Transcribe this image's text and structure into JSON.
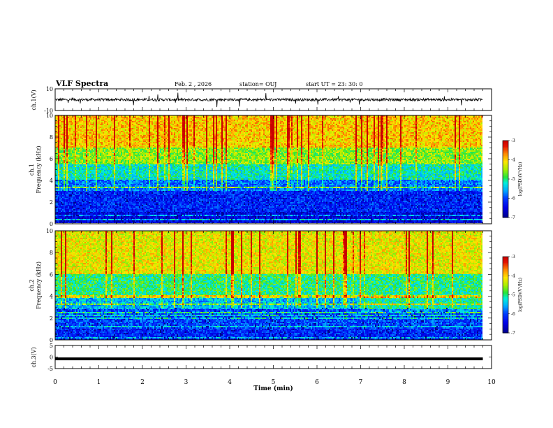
{
  "header": {
    "title": "VLF Spectra",
    "date": "Feb. 2  , 2026",
    "station": "station= OUJ",
    "start": "start  UT  =   23: 30: 0"
  },
  "colors": {
    "spectrum_scale": [
      "#000000",
      "#0000a0",
      "#0010ff",
      "#00a0ff",
      "#00ffc0",
      "#20e020",
      "#c8f000",
      "#ffe000",
      "#ff8000",
      "#e00000",
      "#ffffff"
    ],
    "axis": "#000000"
  },
  "chart_data": [
    {
      "type": "line",
      "panel": "ch1-waveform",
      "ylabel": "ch.1(V)",
      "ylim": [
        -10,
        10
      ],
      "yticks": [
        10,
        -10
      ],
      "xlim": [
        0,
        10
      ],
      "baseline": 0,
      "amplitude": "noise ~±1.5 V with impulsive spikes up to ~±8 V",
      "series": [
        {
          "values_summary": "continuous broadband noise from 0 to 9.8 min"
        }
      ]
    },
    {
      "type": "heatmap",
      "panel": "ch1-spectrogram",
      "ylabel": "ch.1\nFrequency (kHz)",
      "yticks": [
        0,
        2,
        4,
        6,
        8,
        10
      ],
      "ylim": [
        0,
        10
      ],
      "xlim": [
        0,
        10
      ],
      "data_end_min": 9.8,
      "colorbar": {
        "label": "log(PSD)(V²/Hz)",
        "ticks": [
          -3,
          -4,
          -5,
          -6,
          -7
        ],
        "range": [
          -7,
          -3
        ]
      },
      "profile": [
        {
          "freq_khz": [
            0,
            1
          ],
          "log_psd": -6.5
        },
        {
          "freq_khz": [
            1,
            3
          ],
          "log_psd": -6.2
        },
        {
          "freq_khz": [
            3,
            4
          ],
          "log_psd": -5.8
        },
        {
          "freq_khz": [
            4,
            5.5
          ],
          "log_psd": -5.2
        },
        {
          "freq_khz": [
            5.5,
            7
          ],
          "log_psd": -4.6
        },
        {
          "freq_khz": [
            7,
            10
          ],
          "log_psd": -4.0
        }
      ]
    },
    {
      "type": "heatmap",
      "panel": "ch2-spectrogram",
      "ylabel": "ch.2\nFrequency (kHz)",
      "yticks": [
        0,
        2,
        4,
        6,
        8,
        10
      ],
      "ylim": [
        0,
        10
      ],
      "xlim": [
        0,
        10
      ],
      "data_end_min": 9.8,
      "colorbar": {
        "label": "log(PSD)(V²/Hz)",
        "ticks": [
          -3,
          -4,
          -5,
          -6,
          -7
        ],
        "range": [
          -7,
          -3
        ]
      },
      "profile": [
        {
          "freq_khz": [
            0,
            1
          ],
          "log_psd": -6.2
        },
        {
          "freq_khz": [
            1,
            2.8
          ],
          "log_psd": -6.0
        },
        {
          "freq_khz": [
            2.8,
            4
          ],
          "log_psd": -5.5
        },
        {
          "freq_khz": [
            4,
            6
          ],
          "log_psd": -5.0
        },
        {
          "freq_khz": [
            6,
            10
          ],
          "log_psd": -4.2
        }
      ]
    },
    {
      "type": "line",
      "panel": "ch3-waveform",
      "ylabel": "ch.3(V)",
      "ylim": [
        -5,
        5
      ],
      "yticks": [
        5,
        0,
        -5
      ],
      "xlim": [
        0,
        10
      ],
      "series": [
        {
          "values_summary": "flat line at approximately -0.8 V from 0 to 9.8 min"
        }
      ],
      "level": -0.8
    }
  ],
  "xaxis": {
    "label": "Time  (min)",
    "ticks": [
      0,
      1,
      2,
      3,
      4,
      5,
      6,
      7,
      8,
      9,
      10
    ]
  }
}
